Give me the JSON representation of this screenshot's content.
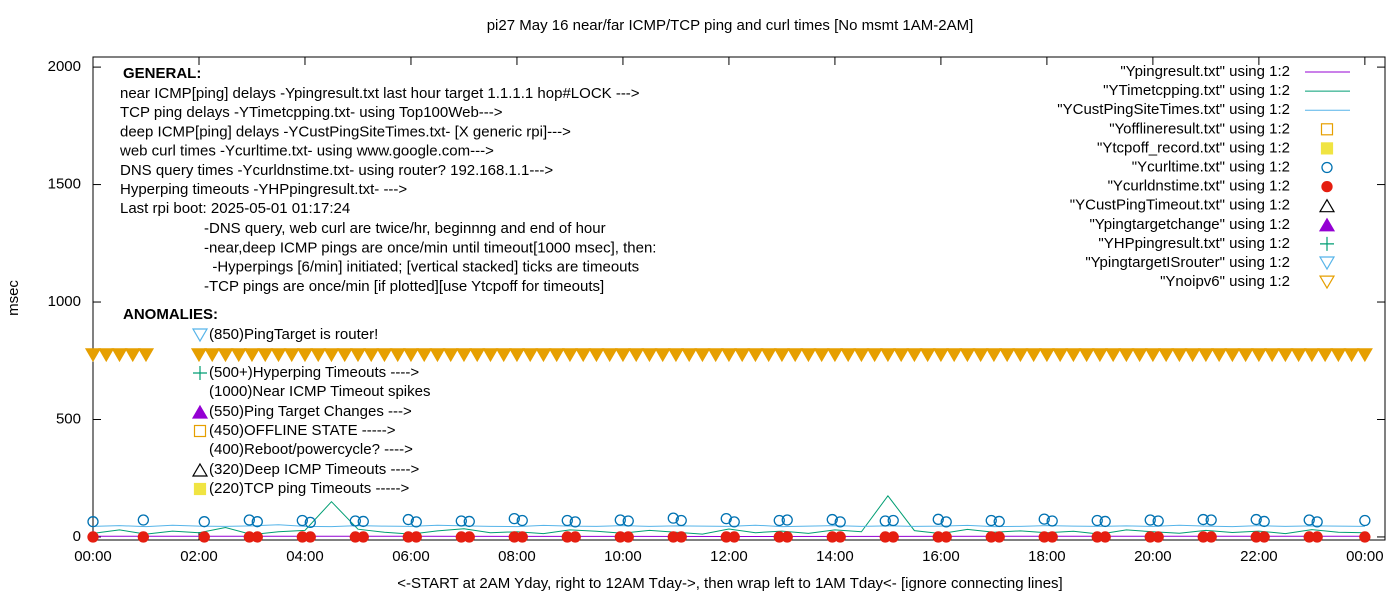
{
  "chart_data": {
    "type": "line",
    "title": "pi27 May 16  near/far ICMP/TCP ping and curl times [No msmt 1AM-2AM]",
    "xlabel": "<-START at 2AM Yday, right to 12AM Tday->, then wrap left to 1AM Tday<- [ignore connecting lines]",
    "ylabel": "msec",
    "xlim": [
      0,
      24.38
    ],
    "ylim": [
      -13,
      2043
    ],
    "xticks": [
      {
        "value": 0,
        "label": "00:00"
      },
      {
        "value": 2,
        "label": "02:00"
      },
      {
        "value": 4,
        "label": "04:00"
      },
      {
        "value": 6,
        "label": "06:00"
      },
      {
        "value": 8,
        "label": "08:00"
      },
      {
        "value": 10,
        "label": "10:00"
      },
      {
        "value": 12,
        "label": "12:00"
      },
      {
        "value": 14,
        "label": "14:00"
      },
      {
        "value": 16,
        "label": "16:00"
      },
      {
        "value": 18,
        "label": "18:00"
      },
      {
        "value": 20,
        "label": "20:00"
      },
      {
        "value": 22,
        "label": "22:00"
      },
      {
        "value": 24,
        "label": "00:00"
      }
    ],
    "yticks": [
      0,
      500,
      1000,
      1500,
      2000
    ],
    "legend": "top-right",
    "annotations": {
      "general_heading": "GENERAL:",
      "general_lines": [
        "near ICMP[ping] delays -Ypingresult.txt last hour target 1.1.1.1 hop#LOCK --->",
        "TCP ping delays -YTimetcpping.txt- using Top100Web--->",
        "deep ICMP[ping] delays -YCustPingSiteTimes.txt- [X generic rpi]--->",
        "web curl times -Ycurltime.txt- using www.google.com--->",
        "DNS query times -Ycurldnstime.txt- using router? 192.168.1.1--->",
        "Hyperping timeouts -YHPpingresult.txt- --->",
        "Last rpi boot: 2025-05-01 01:17:24"
      ],
      "notes": [
        "-DNS query, web curl are twice/hr, beginnng and end of hour",
        "-near,deep ICMP pings are once/min until timeout[1000 msec], then:",
        "  -Hyperpings [6/min] initiated; [vertical stacked] ticks are timeouts",
        "-TCP pings are once/min [if plotted][use Ytcpoff for timeouts]"
      ],
      "anomalies_heading": "ANOMALIES:",
      "anomalies": [
        {
          "text": "(850)PingTarget is router!",
          "marker": "down-triangle",
          "color": "#56b4e9"
        },
        {
          "text": "(500+)Hyperping Timeouts ---->",
          "marker": "plus",
          "color": "#009e73"
        },
        {
          "text": "(1000)Near ICMP Timeout spikes"
        },
        {
          "text": "(550)Ping Target Changes --->",
          "marker": "filled-triangle",
          "color": "#9400d3"
        },
        {
          "text": "(450)OFFLINE STATE ----->",
          "marker": "square",
          "color": "#e69f00"
        },
        {
          "text": "(400)Reboot/powercycle? ---->"
        },
        {
          "text": "(320)Deep ICMP Timeouts ---->",
          "marker": "triangle",
          "color": "#000000"
        },
        {
          "text": "(220)TCP ping Timeouts ----->",
          "marker": "filled-square",
          "color": "#f0e442"
        }
      ]
    },
    "series": [
      {
        "name": "\"Ypingresult.txt\" using 1:2",
        "color": "#9400d3",
        "marker": "line",
        "x": [
          0,
          6,
          12,
          18,
          24
        ],
        "values": [
          3,
          3,
          2,
          3,
          3
        ]
      },
      {
        "name": "\"YTimetcpping.txt\" using 1:2",
        "color": "#009e73",
        "marker": "line",
        "x": [
          0,
          0.5,
          1,
          1.5,
          2,
          2.5,
          3,
          3.5,
          4,
          4.5,
          5,
          5.5,
          6,
          6.5,
          7,
          7.5,
          8,
          8.5,
          9,
          9.5,
          10,
          10.5,
          11,
          11.5,
          12,
          12.5,
          13,
          13.5,
          14,
          14.5,
          15,
          15.5,
          16,
          16.5,
          17,
          17.5,
          18,
          18.5,
          19,
          19.5,
          20,
          20.5,
          21,
          21.5,
          22,
          22.5,
          23,
          23.5,
          24
        ],
        "values": [
          15,
          30,
          12,
          25,
          18,
          40,
          10,
          22,
          28,
          150,
          33,
          20,
          12,
          26,
          35,
          18,
          22,
          14,
          30,
          24,
          16,
          28,
          20,
          12,
          34,
          18,
          25,
          15,
          30,
          22,
          175,
          27,
          14,
          32,
          20,
          26,
          18,
          24,
          12,
          30,
          22,
          16,
          28,
          19,
          25,
          14,
          31,
          20,
          18
        ]
      },
      {
        "name": "\"YCustPingSiteTimes.txt\" using 1:2",
        "color": "#56b4e9",
        "marker": "line",
        "x": [
          0,
          0.5,
          1,
          1.5,
          2,
          2.5,
          3,
          3.5,
          4,
          4.5,
          5,
          5.5,
          6,
          6.5,
          7,
          7.5,
          8,
          8.5,
          9,
          9.5,
          10,
          10.5,
          11,
          11.5,
          12,
          12.5,
          13,
          13.5,
          14,
          14.5,
          15,
          15.5,
          16,
          16.5,
          17,
          17.5,
          18,
          18.5,
          19,
          19.5,
          20,
          20.5,
          21,
          21.5,
          22,
          22.5,
          23,
          23.5,
          24
        ],
        "values": [
          45,
          48,
          44,
          50,
          46,
          45,
          47,
          52,
          45,
          44,
          48,
          46,
          45,
          50,
          47,
          45,
          44,
          49,
          46,
          45,
          48,
          45,
          47,
          46,
          45,
          50,
          44,
          46,
          48,
          45,
          47,
          45,
          46,
          49,
          44,
          45,
          48,
          46,
          45,
          47,
          45,
          50,
          46,
          44,
          48,
          45,
          47,
          46,
          45
        ]
      },
      {
        "name": "\"Yofflineresult.txt\" using 1:2",
        "color": "#e69f00",
        "marker": "square",
        "x": [],
        "values": []
      },
      {
        "name": "\"Ytcpoff_record.txt\" using 1:2",
        "color": "#f0e442",
        "marker": "filled-square",
        "x": [],
        "values": []
      },
      {
        "name": "\"Ycurltime.txt\" using 1:2",
        "color": "#0072b2",
        "marker": "circle",
        "x": [
          0,
          0.95,
          2.1,
          2.95,
          3.1,
          3.95,
          4.1,
          4.95,
          5.1,
          5.95,
          6.1,
          6.95,
          7.1,
          7.95,
          8.1,
          8.95,
          9.1,
          9.95,
          10.1,
          10.95,
          11.1,
          11.95,
          12.1,
          12.95,
          13.1,
          13.95,
          14.1,
          14.95,
          15.1,
          15.95,
          16.1,
          16.95,
          17.1,
          17.95,
          18.1,
          18.95,
          19.1,
          19.95,
          20.1,
          20.95,
          21.1,
          21.95,
          22.1,
          22.95,
          23.1,
          24
        ],
        "values": [
          65,
          72,
          65,
          72,
          65,
          70,
          62,
          68,
          66,
          74,
          64,
          68,
          66,
          78,
          70,
          70,
          64,
          72,
          68,
          80,
          70,
          78,
          64,
          70,
          72,
          74,
          64,
          68,
          70,
          75,
          64,
          70,
          66,
          76,
          68,
          70,
          66,
          72,
          68,
          74,
          72,
          74,
          66,
          72,
          64,
          70
        ]
      },
      {
        "name": "\"Ycurldnstime.txt\" using 1:2",
        "color": "#e51e10",
        "marker": "filled-circle",
        "x": [
          0,
          0.95,
          2.1,
          2.95,
          3.1,
          3.95,
          4.1,
          4.95,
          5.1,
          5.95,
          6.1,
          6.95,
          7.1,
          7.95,
          8.1,
          8.95,
          9.1,
          9.95,
          10.1,
          10.95,
          11.1,
          11.95,
          12.1,
          12.95,
          13.1,
          13.95,
          14.1,
          14.95,
          15.1,
          15.95,
          16.1,
          16.95,
          17.1,
          17.95,
          18.1,
          18.95,
          19.1,
          19.95,
          20.1,
          20.95,
          21.1,
          21.95,
          22.1,
          22.95,
          23.1,
          24
        ],
        "values": [
          0,
          0,
          0,
          0,
          0,
          0,
          0,
          0,
          0,
          0,
          0,
          0,
          0,
          0,
          0,
          0,
          0,
          0,
          0,
          0,
          0,
          0,
          0,
          0,
          0,
          0,
          0,
          0,
          0,
          0,
          0,
          0,
          0,
          0,
          0,
          0,
          0,
          0,
          0,
          0,
          0,
          0,
          0,
          0,
          0,
          0
        ]
      },
      {
        "name": "\"YCustPingTimeout.txt\" using 1:2",
        "color": "#000000",
        "marker": "triangle",
        "x": [],
        "values": []
      },
      {
        "name": "\"Ypingtargetchange\" using 1:2",
        "color": "#9400d3",
        "marker": "filled-triangle",
        "x": [],
        "values": []
      },
      {
        "name": "\"YHPpingresult.txt\" using 1:2",
        "color": "#009e73",
        "marker": "plus",
        "x": [],
        "values": []
      },
      {
        "name": "\"YpingtargetISrouter\" using 1:2",
        "color": "#56b4e9",
        "marker": "down-triangle",
        "x": [],
        "values": []
      },
      {
        "name": "\"Ynoipv6\" using 1:2",
        "color": "#e69f00",
        "marker": "down-triangle",
        "x": [
          0,
          0.25,
          0.5,
          0.75,
          1,
          2,
          2.25,
          2.5,
          2.75,
          3,
          3.25,
          3.5,
          3.75,
          4,
          4.25,
          4.5,
          4.75,
          5,
          5.25,
          5.5,
          5.75,
          6,
          6.25,
          6.5,
          6.75,
          7,
          7.25,
          7.5,
          7.75,
          8,
          8.25,
          8.5,
          8.75,
          9,
          9.25,
          9.5,
          9.75,
          10,
          10.25,
          10.5,
          10.75,
          11,
          11.25,
          11.5,
          11.75,
          12,
          12.25,
          12.5,
          12.75,
          13,
          13.25,
          13.5,
          13.75,
          14,
          14.25,
          14.5,
          14.75,
          15,
          15.25,
          15.5,
          15.75,
          16,
          16.25,
          16.5,
          16.75,
          17,
          17.25,
          17.5,
          17.75,
          18,
          18.25,
          18.5,
          18.75,
          19,
          19.25,
          19.5,
          19.75,
          20,
          20.25,
          20.5,
          20.75,
          21,
          21.25,
          21.5,
          21.75,
          22,
          22.25,
          22.5,
          22.75,
          23,
          23.25,
          23.5,
          23.75,
          24
        ],
        "values": [
          775,
          775,
          775,
          775,
          775,
          775,
          775,
          775,
          775,
          775,
          775,
          775,
          775,
          775,
          775,
          775,
          775,
          775,
          775,
          775,
          775,
          775,
          775,
          775,
          775,
          775,
          775,
          775,
          775,
          775,
          775,
          775,
          775,
          775,
          775,
          775,
          775,
          775,
          775,
          775,
          775,
          775,
          775,
          775,
          775,
          775,
          775,
          775,
          775,
          775,
          775,
          775,
          775,
          775,
          775,
          775,
          775,
          775,
          775,
          775,
          775,
          775,
          775,
          775,
          775,
          775,
          775,
          775,
          775,
          775,
          775,
          775,
          775,
          775,
          775,
          775,
          775,
          775,
          775,
          775,
          775,
          775,
          775,
          775,
          775,
          775,
          775,
          775,
          775,
          775,
          775,
          775,
          775,
          775
        ]
      }
    ]
  }
}
